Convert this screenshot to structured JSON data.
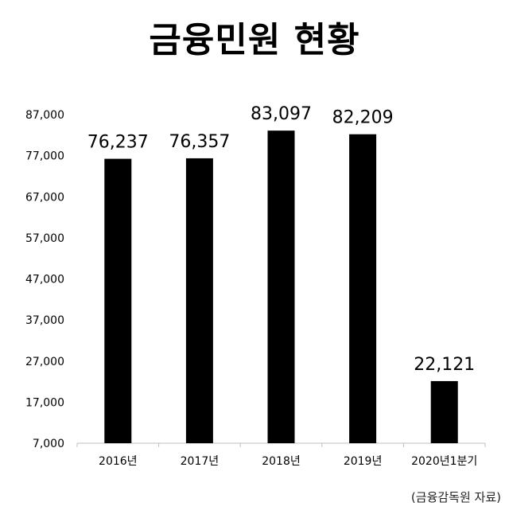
{
  "title": "금융민원 현황",
  "source": "(금융감독원 자료)",
  "chart_data": {
    "type": "bar",
    "categories": [
      "2016년",
      "2017년",
      "2018년",
      "2019년",
      "2020년1분기"
    ],
    "values": [
      76237,
      76357,
      83097,
      82209,
      22121
    ],
    "value_labels": [
      "76,237",
      "76,357",
      "83,097",
      "82,209",
      "22,121"
    ],
    "y_ticks": [
      "7,000",
      "17,000",
      "27,000",
      "37,000",
      "47,000",
      "57,000",
      "67,000",
      "77,000",
      "87,000"
    ],
    "y_tick_values": [
      7000,
      17000,
      27000,
      37000,
      47000,
      57000,
      67000,
      77000,
      87000
    ],
    "ylim": [
      7000,
      87000
    ],
    "bar_color": "#000000",
    "grid": false,
    "legend": "none"
  }
}
